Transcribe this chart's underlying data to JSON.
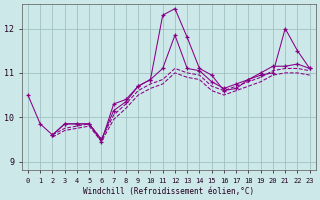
{
  "bg_color": "#cce8e8",
  "line_color": "#880088",
  "grid_color": "#99bbbb",
  "xlim": [
    -0.5,
    23.5
  ],
  "ylim": [
    8.8,
    12.55
  ],
  "yticks": [
    9,
    10,
    11,
    12
  ],
  "xticks": [
    0,
    1,
    2,
    3,
    4,
    5,
    6,
    7,
    8,
    9,
    10,
    11,
    12,
    13,
    14,
    15,
    16,
    17,
    18,
    19,
    20,
    21,
    22,
    23
  ],
  "xlabel": "Windchill (Refroidissement éolien,°C)",
  "series": [
    {
      "x": [
        0,
        1,
        2,
        3,
        4,
        5,
        6,
        7,
        8,
        9,
        10,
        11,
        12,
        13,
        14,
        15,
        16,
        17,
        18,
        19,
        20,
        21,
        22,
        23
      ],
      "y": [
        10.5,
        9.85,
        9.6,
        9.85,
        9.85,
        9.85,
        9.45,
        10.3,
        10.4,
        10.7,
        10.85,
        12.3,
        12.45,
        11.8,
        11.1,
        10.95,
        10.6,
        10.65,
        10.85,
        10.95,
        11.0,
        12.0,
        11.5,
        11.1
      ],
      "ls": "-",
      "marker": true
    },
    {
      "x": [
        2,
        3,
        4,
        5,
        6,
        7,
        8,
        9,
        10,
        11,
        12,
        13,
        14,
        15,
        16,
        17,
        18,
        19,
        20,
        21,
        22,
        23
      ],
      "y": [
        9.6,
        9.85,
        9.85,
        9.85,
        9.5,
        10.15,
        10.35,
        10.7,
        10.85,
        11.1,
        11.85,
        11.1,
        11.05,
        10.8,
        10.65,
        10.75,
        10.85,
        11.0,
        11.15,
        11.15,
        11.2,
        11.1
      ],
      "ls": "-",
      "marker": true
    },
    {
      "x": [
        2,
        3,
        4,
        5,
        6,
        7,
        8,
        9,
        10,
        11,
        12,
        13,
        14,
        15,
        16,
        17,
        18,
        19,
        20,
        21,
        22,
        23
      ],
      "y": [
        9.6,
        9.75,
        9.8,
        9.85,
        9.5,
        10.05,
        10.3,
        10.6,
        10.75,
        10.85,
        11.1,
        11.0,
        10.95,
        10.7,
        10.6,
        10.7,
        10.8,
        10.9,
        11.05,
        11.1,
        11.1,
        11.05
      ],
      "ls": "--",
      "marker": false
    },
    {
      "x": [
        2,
        3,
        4,
        5,
        6,
        7,
        8,
        9,
        10,
        11,
        12,
        13,
        14,
        15,
        16,
        17,
        18,
        19,
        20,
        21,
        22,
        23
      ],
      "y": [
        9.55,
        9.7,
        9.75,
        9.8,
        9.45,
        9.95,
        10.2,
        10.5,
        10.65,
        10.75,
        11.0,
        10.9,
        10.85,
        10.6,
        10.5,
        10.6,
        10.7,
        10.8,
        10.95,
        11.0,
        11.0,
        10.95
      ],
      "ls": "--",
      "marker": false
    }
  ]
}
